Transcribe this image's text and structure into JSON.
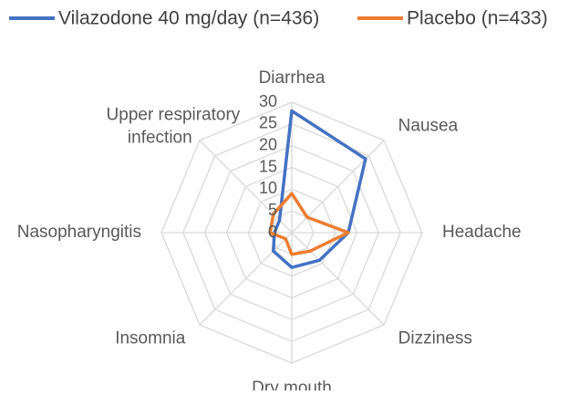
{
  "chart_data": {
    "type": "radar",
    "categories": [
      "Diarrhea",
      "Nausea",
      "Headache",
      "Dizziness",
      "Dry mouth",
      "Insomnia",
      "Nasopharyngitis",
      "Upper respiratory\ninfection"
    ],
    "series": [
      {
        "name": "Vilazodone 40 mg/day (n=436)",
        "color": "#4472c4",
        "values": [
          28,
          24,
          13,
          9,
          8,
          6,
          4,
          4
        ]
      },
      {
        "name": "Placebo (n=433)",
        "color": "#ed7d31",
        "values": [
          9,
          5,
          13,
          6,
          5,
          2,
          5,
          6
        ]
      }
    ],
    "ylim": [
      0,
      30
    ],
    "yticks": [
      0,
      5,
      10,
      15,
      20,
      25,
      30
    ],
    "grid": true,
    "legend": "top"
  }
}
